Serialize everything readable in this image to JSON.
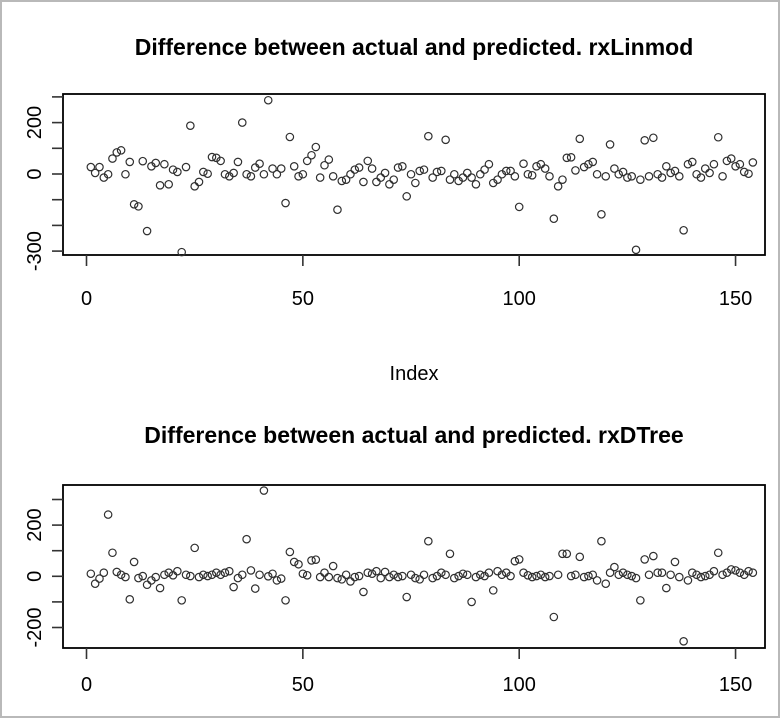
{
  "window": {
    "background_color": "#ffffff",
    "border_color": "#b9b9b9",
    "plot_box_color": "#000000",
    "marker_color": "#2f2f2f"
  },
  "chart_data": [
    {
      "type": "scatter",
      "title": "Difference between actual and predicted. rxLinmod",
      "xlabel": "Index",
      "ylabel": "",
      "marker": "open-circle",
      "grid": false,
      "legend": "none",
      "xlim": [
        -6,
        157
      ],
      "ylim": [
        -330,
        310
      ],
      "x_ticks": [
        0,
        50,
        100,
        150
      ],
      "x_tick_labels": [
        "0",
        "50",
        "100",
        "150"
      ],
      "y_ticks": [
        300,
        200,
        100,
        0,
        -100,
        -200,
        -300
      ],
      "y_tick_labels": [
        "",
        "200",
        "",
        "0",
        "",
        "",
        "-300"
      ],
      "points": [
        [
          1,
          27
        ],
        [
          2,
          4
        ],
        [
          3,
          27
        ],
        [
          4,
          -14
        ],
        [
          5,
          -1
        ],
        [
          6,
          60
        ],
        [
          7,
          84
        ],
        [
          8,
          92
        ],
        [
          9,
          -1
        ],
        [
          10,
          47
        ],
        [
          11,
          -118
        ],
        [
          12,
          -126
        ],
        [
          13,
          50
        ],
        [
          14,
          -222
        ],
        [
          15,
          30
        ],
        [
          16,
          43
        ],
        [
          17,
          -44
        ],
        [
          18,
          38
        ],
        [
          19,
          -40
        ],
        [
          20,
          17
        ],
        [
          21,
          8
        ],
        [
          22,
          -304
        ],
        [
          23,
          27
        ],
        [
          24,
          188
        ],
        [
          25,
          -48
        ],
        [
          26,
          -31
        ],
        [
          27,
          8
        ],
        [
          28,
          1
        ],
        [
          29,
          66
        ],
        [
          30,
          63
        ],
        [
          31,
          51
        ],
        [
          32,
          -1
        ],
        [
          33,
          -9
        ],
        [
          34,
          4
        ],
        [
          35,
          47
        ],
        [
          36,
          200
        ],
        [
          37,
          -1
        ],
        [
          38,
          -9
        ],
        [
          39,
          25
        ],
        [
          40,
          40
        ],
        [
          41,
          -1
        ],
        [
          42,
          287
        ],
        [
          43,
          21
        ],
        [
          44,
          -1
        ],
        [
          45,
          21
        ],
        [
          46,
          -113
        ],
        [
          47,
          144
        ],
        [
          48,
          30
        ],
        [
          49,
          -9
        ],
        [
          50,
          -1
        ],
        [
          51,
          51
        ],
        [
          52,
          73
        ],
        [
          53,
          105
        ],
        [
          54,
          -14
        ],
        [
          55,
          34
        ],
        [
          56,
          56
        ],
        [
          57,
          -9
        ],
        [
          58,
          -139
        ],
        [
          59,
          -27
        ],
        [
          60,
          -22
        ],
        [
          61,
          -1
        ],
        [
          62,
          17
        ],
        [
          63,
          25
        ],
        [
          64,
          -31
        ],
        [
          65,
          51
        ],
        [
          66,
          21
        ],
        [
          67,
          -31
        ],
        [
          68,
          -14
        ],
        [
          69,
          4
        ],
        [
          70,
          -40
        ],
        [
          71,
          -22
        ],
        [
          72,
          25
        ],
        [
          73,
          30
        ],
        [
          74,
          -87
        ],
        [
          75,
          -1
        ],
        [
          76,
          -35
        ],
        [
          77,
          12
        ],
        [
          78,
          17
        ],
        [
          79,
          147
        ],
        [
          80,
          -14
        ],
        [
          81,
          8
        ],
        [
          82,
          12
        ],
        [
          83,
          133
        ],
        [
          84,
          -22
        ],
        [
          85,
          -1
        ],
        [
          86,
          -27
        ],
        [
          87,
          -14
        ],
        [
          88,
          4
        ],
        [
          89,
          -14
        ],
        [
          90,
          -40
        ],
        [
          91,
          -1
        ],
        [
          92,
          17
        ],
        [
          93,
          38
        ],
        [
          94,
          -35
        ],
        [
          95,
          -22
        ],
        [
          96,
          -1
        ],
        [
          97,
          12
        ],
        [
          98,
          12
        ],
        [
          99,
          -9
        ],
        [
          100,
          -128
        ],
        [
          101,
          40
        ],
        [
          102,
          -1
        ],
        [
          103,
          -5
        ],
        [
          104,
          30
        ],
        [
          105,
          38
        ],
        [
          106,
          21
        ],
        [
          107,
          -9
        ],
        [
          108,
          -174
        ],
        [
          109,
          -48
        ],
        [
          110,
          -22
        ],
        [
          111,
          63
        ],
        [
          112,
          65
        ],
        [
          113,
          14
        ],
        [
          114,
          137
        ],
        [
          115,
          27
        ],
        [
          116,
          38
        ],
        [
          117,
          47
        ],
        [
          118,
          -1
        ],
        [
          119,
          -157
        ],
        [
          120,
          -9
        ],
        [
          121,
          115
        ],
        [
          122,
          21
        ],
        [
          123,
          -1
        ],
        [
          124,
          8
        ],
        [
          125,
          -14
        ],
        [
          126,
          -9
        ],
        [
          127,
          -295
        ],
        [
          128,
          -22
        ],
        [
          129,
          131
        ],
        [
          130,
          -9
        ],
        [
          131,
          141
        ],
        [
          132,
          -1
        ],
        [
          133,
          -14
        ],
        [
          134,
          30
        ],
        [
          135,
          4
        ],
        [
          136,
          12
        ],
        [
          137,
          -9
        ],
        [
          138,
          -219
        ],
        [
          139,
          38
        ],
        [
          140,
          47
        ],
        [
          141,
          -1
        ],
        [
          142,
          -14
        ],
        [
          143,
          21
        ],
        [
          144,
          4
        ],
        [
          145,
          38
        ],
        [
          146,
          143
        ],
        [
          147,
          -9
        ],
        [
          148,
          51
        ],
        [
          149,
          60
        ],
        [
          150,
          30
        ],
        [
          151,
          38
        ],
        [
          152,
          8
        ],
        [
          153,
          1
        ],
        [
          154,
          45
        ]
      ]
    },
    {
      "type": "scatter",
      "title": "Difference between actual and predicted. rxDTree",
      "xlabel": "",
      "ylabel": "",
      "marker": "open-circle",
      "grid": false,
      "legend": "none",
      "xlim": [
        -6,
        157
      ],
      "ylim": [
        -280,
        356
      ],
      "x_ticks": [
        0,
        50,
        100,
        150
      ],
      "x_tick_labels": [
        "0",
        "50",
        "100",
        "150"
      ],
      "y_ticks": [
        300,
        200,
        100,
        0,
        -100,
        -200
      ],
      "y_tick_labels": [
        "",
        "200",
        "",
        "0",
        "",
        "-200"
      ],
      "points": [
        [
          1,
          10
        ],
        [
          2,
          -29
        ],
        [
          3,
          -9
        ],
        [
          4,
          14
        ],
        [
          5,
          241
        ],
        [
          6,
          92
        ],
        [
          7,
          17
        ],
        [
          8,
          6
        ],
        [
          9,
          -3
        ],
        [
          10,
          -90
        ],
        [
          11,
          56
        ],
        [
          12,
          -7
        ],
        [
          13,
          1
        ],
        [
          14,
          -33
        ],
        [
          15,
          -16
        ],
        [
          16,
          -3
        ],
        [
          17,
          -46
        ],
        [
          18,
          6
        ],
        [
          19,
          14
        ],
        [
          20,
          4
        ],
        [
          21,
          20
        ],
        [
          22,
          -94
        ],
        [
          23,
          6
        ],
        [
          24,
          1
        ],
        [
          25,
          111
        ],
        [
          26,
          -3
        ],
        [
          27,
          6
        ],
        [
          28,
          1
        ],
        [
          29,
          6
        ],
        [
          30,
          14
        ],
        [
          31,
          6
        ],
        [
          32,
          14
        ],
        [
          33,
          20
        ],
        [
          34,
          -42
        ],
        [
          35,
          -7
        ],
        [
          36,
          6
        ],
        [
          37,
          145
        ],
        [
          38,
          23
        ],
        [
          39,
          -48
        ],
        [
          40,
          6
        ],
        [
          41,
          335
        ],
        [
          42,
          0
        ],
        [
          43,
          10
        ],
        [
          44,
          -16
        ],
        [
          45,
          -9
        ],
        [
          46,
          -94
        ],
        [
          47,
          95
        ],
        [
          48,
          56
        ],
        [
          49,
          47
        ],
        [
          50,
          10
        ],
        [
          51,
          4
        ],
        [
          52,
          62
        ],
        [
          53,
          65
        ],
        [
          54,
          -3
        ],
        [
          55,
          14
        ],
        [
          56,
          -3
        ],
        [
          57,
          40
        ],
        [
          58,
          -7
        ],
        [
          59,
          -12
        ],
        [
          60,
          6
        ],
        [
          61,
          -20
        ],
        [
          62,
          -3
        ],
        [
          63,
          1
        ],
        [
          64,
          -61
        ],
        [
          65,
          14
        ],
        [
          66,
          10
        ],
        [
          67,
          20
        ],
        [
          68,
          -7
        ],
        [
          69,
          17
        ],
        [
          70,
          -3
        ],
        [
          71,
          6
        ],
        [
          72,
          -3
        ],
        [
          73,
          1
        ],
        [
          74,
          -81
        ],
        [
          75,
          6
        ],
        [
          76,
          -7
        ],
        [
          77,
          -12
        ],
        [
          78,
          6
        ],
        [
          79,
          137
        ],
        [
          80,
          -7
        ],
        [
          81,
          1
        ],
        [
          82,
          14
        ],
        [
          83,
          6
        ],
        [
          84,
          88
        ],
        [
          85,
          -7
        ],
        [
          86,
          1
        ],
        [
          87,
          10
        ],
        [
          88,
          6
        ],
        [
          89,
          -100
        ],
        [
          90,
          -3
        ],
        [
          91,
          6
        ],
        [
          92,
          1
        ],
        [
          93,
          14
        ],
        [
          94,
          -55
        ],
        [
          95,
          20
        ],
        [
          96,
          6
        ],
        [
          97,
          14
        ],
        [
          98,
          1
        ],
        [
          99,
          59
        ],
        [
          100,
          66
        ],
        [
          101,
          14
        ],
        [
          102,
          4
        ],
        [
          103,
          -3
        ],
        [
          104,
          1
        ],
        [
          105,
          6
        ],
        [
          106,
          -3
        ],
        [
          107,
          1
        ],
        [
          108,
          -159
        ],
        [
          109,
          6
        ],
        [
          110,
          88
        ],
        [
          111,
          88
        ],
        [
          112,
          1
        ],
        [
          113,
          6
        ],
        [
          114,
          76
        ],
        [
          115,
          -3
        ],
        [
          116,
          1
        ],
        [
          117,
          6
        ],
        [
          118,
          -16
        ],
        [
          119,
          137
        ],
        [
          120,
          -29
        ],
        [
          121,
          14
        ],
        [
          122,
          36
        ],
        [
          123,
          6
        ],
        [
          124,
          14
        ],
        [
          125,
          6
        ],
        [
          126,
          1
        ],
        [
          127,
          -7
        ],
        [
          128,
          -94
        ],
        [
          129,
          66
        ],
        [
          130,
          6
        ],
        [
          131,
          79
        ],
        [
          132,
          14
        ],
        [
          133,
          14
        ],
        [
          134,
          -46
        ],
        [
          135,
          6
        ],
        [
          136,
          56
        ],
        [
          137,
          -3
        ],
        [
          138,
          -254
        ],
        [
          139,
          -16
        ],
        [
          140,
          14
        ],
        [
          141,
          6
        ],
        [
          142,
          -3
        ],
        [
          143,
          1
        ],
        [
          144,
          6
        ],
        [
          145,
          20
        ],
        [
          146,
          92
        ],
        [
          147,
          6
        ],
        [
          148,
          14
        ],
        [
          149,
          27
        ],
        [
          150,
          23
        ],
        [
          151,
          14
        ],
        [
          152,
          6
        ],
        [
          153,
          20
        ],
        [
          154,
          14
        ]
      ]
    }
  ]
}
